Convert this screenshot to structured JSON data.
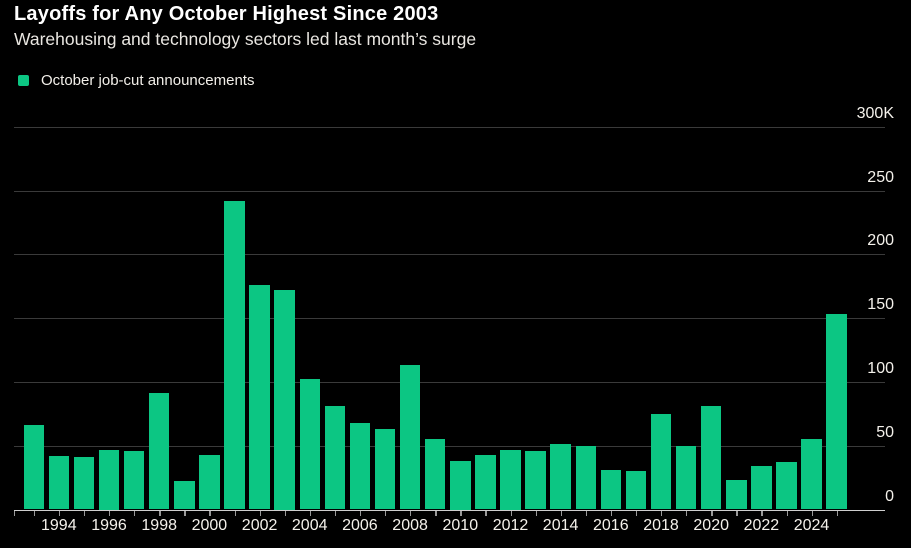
{
  "chart_data": {
    "type": "bar",
    "title": "Layoffs for Any October Highest Since 2003",
    "subtitle": "Warehousing and technology sectors led last month’s surge",
    "series_name": "October job-cut announcements",
    "unit": "thousands of announced job cuts",
    "categories": [
      "1993",
      "1994",
      "1995",
      "1996",
      "1997",
      "1998",
      "1999",
      "2000",
      "2001",
      "2002",
      "2003",
      "2004",
      "2005",
      "2006",
      "2007",
      "2008",
      "2009",
      "2010",
      "2011",
      "2012",
      "2013",
      "2014",
      "2015",
      "2016",
      "2017",
      "2018",
      "2019",
      "2020",
      "2021",
      "2022",
      "2023",
      "2024",
      "2025"
    ],
    "values": [
      66,
      42,
      41,
      47,
      46,
      91,
      22,
      43,
      242,
      176,
      172,
      102,
      81,
      68,
      63,
      113,
      55,
      38,
      43,
      47,
      46,
      51,
      50,
      31,
      30,
      75,
      50,
      81,
      23,
      34,
      37,
      55,
      153
    ],
    "y_ticks": [
      {
        "label": "300K",
        "value": 300
      },
      {
        "label": "250",
        "value": 250
      },
      {
        "label": "200",
        "value": 200
      },
      {
        "label": "150",
        "value": 150
      },
      {
        "label": "100",
        "value": 100
      },
      {
        "label": "50",
        "value": 50
      },
      {
        "label": "0",
        "value": 0
      }
    ],
    "x_tick_labels": [
      "1994",
      "1996",
      "1998",
      "2000",
      "2002",
      "2004",
      "2006",
      "2008",
      "2010",
      "2012",
      "2014",
      "2016",
      "2018",
      "2020",
      "2022",
      "2024"
    ],
    "ylim": [
      0,
      300
    ],
    "grid": true,
    "legend_position": "top-left",
    "bar_color": "#0cc683",
    "grid_color": "#3a3a3a",
    "axis_line_color": "#cfcfcf",
    "tick_color": "#9a9a9a",
    "text_color": "#f4f1eb",
    "background_color": "#000000"
  }
}
